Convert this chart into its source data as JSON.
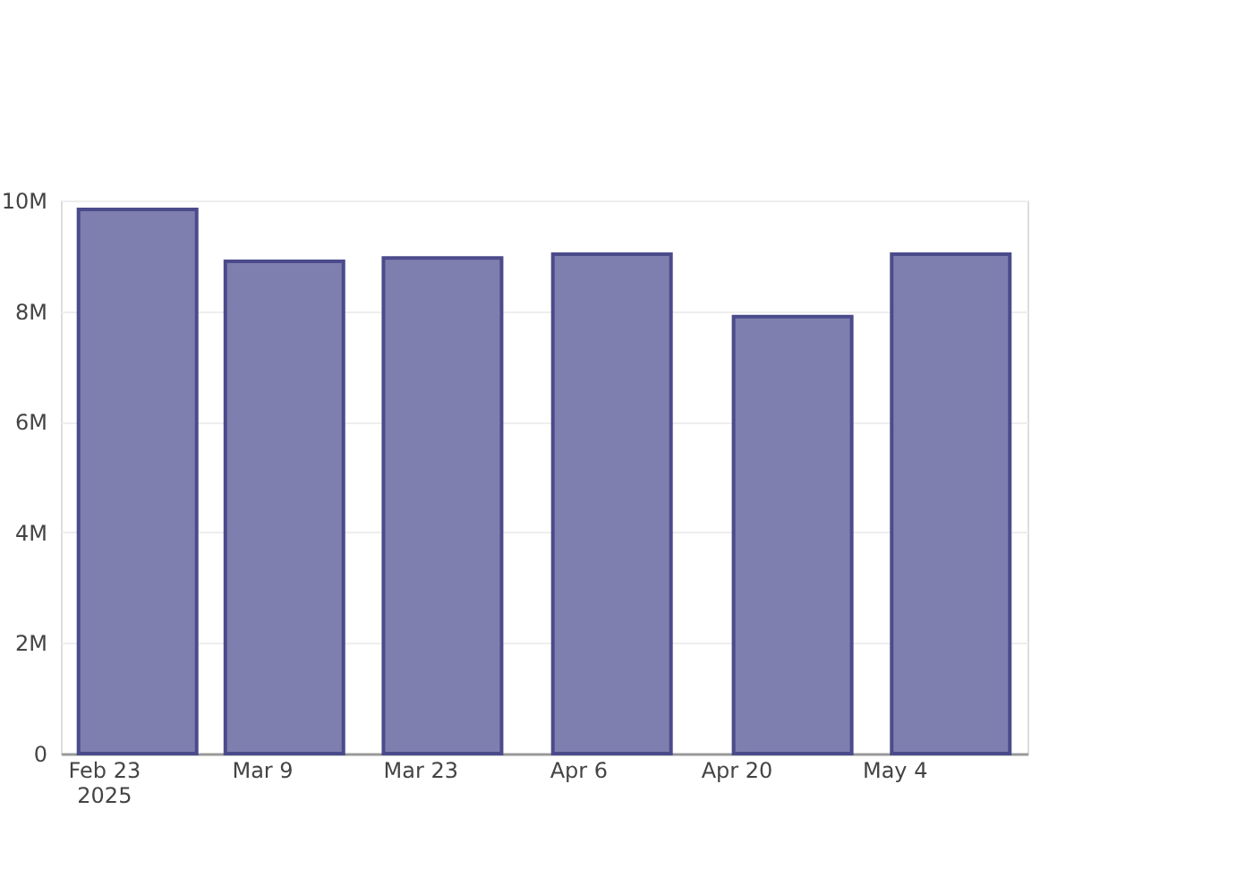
{
  "chart_data": {
    "type": "bar",
    "x": [
      "2025-02-26",
      "2025-03-11",
      "2025-03-25",
      "2025-04-09",
      "2025-04-25",
      "2025-05-09"
    ],
    "values": [
      9840000,
      8900000,
      8960000,
      9030000,
      7900000,
      9030000
    ],
    "color": "#7f7faf",
    "xlim": [
      "2025-02-20",
      "2025-05-15"
    ],
    "xticks": [
      {
        "value": "2025-02-23",
        "label": "Feb 23\n2025"
      },
      {
        "value": "2025-03-09",
        "label": "Mar 9"
      },
      {
        "value": "2025-03-23",
        "label": "Mar 23"
      },
      {
        "value": "2025-04-06",
        "label": "Apr 6"
      },
      {
        "value": "2025-04-20",
        "label": "Apr 20"
      },
      {
        "value": "2025-05-04",
        "label": "May 4"
      }
    ],
    "ylim": [
      0,
      10000000
    ],
    "yticks": [
      0,
      {
        "value": 2000000,
        "label": "2M"
      },
      {
        "value": 4000000,
        "label": "4M"
      },
      {
        "value": 6000000,
        "label": "6M"
      },
      {
        "value": 8000000,
        "label": "8M"
      },
      {
        "value": 10000000,
        "label": "10M"
      }
    ],
    "grid": "y"
  }
}
